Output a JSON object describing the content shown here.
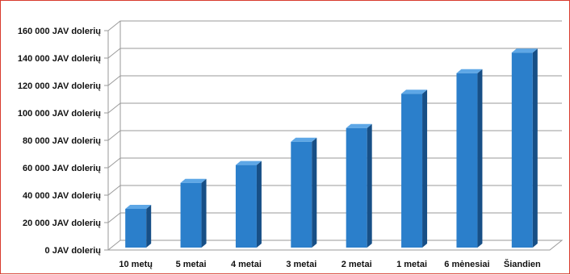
{
  "frame": {
    "border_color": "#d83a2e"
  },
  "chart_data": {
    "type": "bar",
    "title": "",
    "xlabel": "",
    "ylabel": "",
    "categories": [
      "10 metų",
      "5 metai",
      "4 metai",
      "3 metai",
      "2 metai",
      "1 metai",
      "6 mėnesiai",
      "Šiandien"
    ],
    "values": [
      30000,
      49000,
      62000,
      79000,
      89000,
      114000,
      129000,
      144000
    ],
    "ylim": [
      0,
      160000
    ],
    "ytick_values": [
      0,
      20000,
      40000,
      60000,
      80000,
      100000,
      120000,
      140000,
      160000
    ],
    "ytick_labels": [
      "0 JAV dolerių",
      "20 000 JAV dolerių",
      "40 000 JAV dolerių",
      "60 000 JAV dolerių",
      "80 000 JAV dolerių",
      "100 000 JAV dolerių",
      "120 000 JAV dolerių",
      "140 000 JAV dolerių",
      "160 000 JAV dolerių"
    ],
    "grid": true,
    "legend": "none",
    "style": "3d-column",
    "colors": {
      "bar_front": "#2b7fcb",
      "bar_side": "#174f86",
      "bar_top": "#5ea7e6",
      "grid": "#9a9a9a"
    }
  }
}
